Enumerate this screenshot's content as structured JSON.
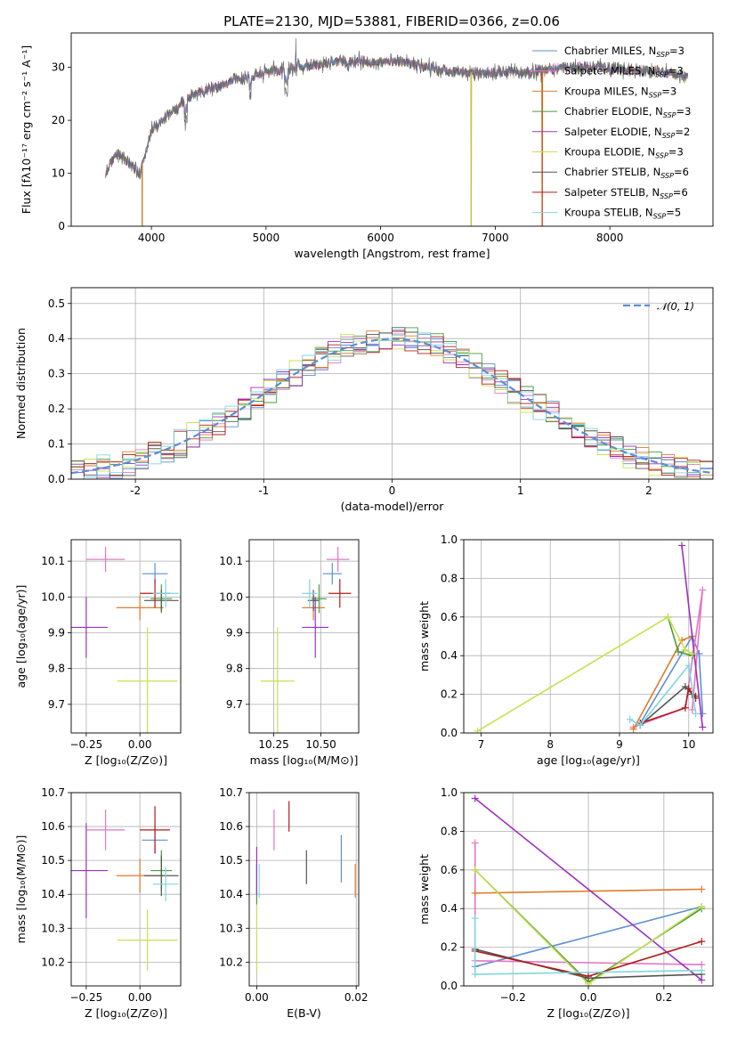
{
  "figure": {
    "title": "PLATE=2130, MJD=53881, FIBERID=0366, z=0.06"
  },
  "models": [
    {
      "name": "Chabrier MILES",
      "nssp": "3",
      "color": "#5d8fd1"
    },
    {
      "name": "Salpeter MILES",
      "nssp": "3",
      "color": "#e377c2"
    },
    {
      "name": "Kroupa MILES",
      "nssp": "3",
      "color": "#e07b2c"
    },
    {
      "name": "Chabrier ELODIE",
      "nssp": "3",
      "color": "#4a9a3c"
    },
    {
      "name": "Salpeter ELODIE",
      "nssp": "2",
      "color": "#9b30c0"
    },
    {
      "name": "Kroupa ELODIE",
      "nssp": "3",
      "color": "#c8e050"
    },
    {
      "name": "Chabrier STELIB",
      "nssp": "6",
      "color": "#555555"
    },
    {
      "name": "Salpeter STELIB",
      "nssp": "6",
      "color": "#b01c1c"
    },
    {
      "name": "Kroupa STELIB",
      "nssp": "5",
      "color": "#7fd6e0"
    }
  ],
  "chart_data": [
    {
      "id": "spectrum",
      "type": "line",
      "xlabel_pre": "wavelength [Angstrom, rest frame]",
      "ylabel": "Flux [fλ10⁻¹⁷ erg cm⁻² s⁻¹ A⁻¹]",
      "xlim": [
        3300,
        8900
      ],
      "ylim": [
        0,
        36.5
      ],
      "xticks": [
        4000,
        5000,
        6000,
        7000,
        8000
      ],
      "yticks": [
        0,
        10,
        20,
        30
      ],
      "grid": false,
      "legend": "top-right",
      "legend_suffix": ", N",
      "legend_sub": "SSP",
      "x_range": [
        3600,
        8680
      ],
      "continuum": [
        [
          3600,
          10
        ],
        [
          3700,
          14
        ],
        [
          3800,
          12
        ],
        [
          3900,
          10
        ],
        [
          4000,
          18
        ],
        [
          4100,
          20
        ],
        [
          4200,
          22
        ],
        [
          4300,
          24
        ],
        [
          4500,
          26
        ],
        [
          4800,
          28
        ],
        [
          5000,
          29
        ],
        [
          5300,
          30
        ],
        [
          5600,
          31
        ],
        [
          5900,
          31
        ],
        [
          6200,
          31
        ],
        [
          6500,
          29.5
        ],
        [
          6800,
          29
        ],
        [
          7000,
          29
        ],
        [
          7300,
          29
        ],
        [
          7600,
          30
        ],
        [
          7900,
          30
        ],
        [
          8200,
          29.5
        ],
        [
          8500,
          29
        ],
        [
          8680,
          28
        ]
      ],
      "spikes": [
        [
          3920,
          0
        ],
        [
          6790,
          0
        ],
        [
          7410,
          0
        ]
      ]
    },
    {
      "id": "residuals",
      "type": "histogram",
      "xlabel": "(data-model)/error",
      "ylabel": "Normed distribution",
      "xlim": [
        -2.5,
        2.5
      ],
      "ylim": [
        0,
        0.545
      ],
      "xticks": [
        -2,
        -1,
        0,
        1,
        2
      ],
      "yticks": [
        0.0,
        0.1,
        0.2,
        0.3,
        0.4,
        0.5
      ],
      "grid": true,
      "legend": "top-right",
      "gaussian_label": "𝒩(0, 1)",
      "gaussian_color": "#5b8fd6",
      "bin_width": 0.1
    },
    {
      "id": "age_vs_Z",
      "type": "errorbar",
      "xlabel": "Z [log₁₀(Z/Z⊙)]",
      "ylabel": "age  [log₁₀(age/yr)]",
      "xlim": [
        -0.32,
        0.19
      ],
      "ylim": [
        9.62,
        10.16
      ],
      "xticks": [
        -0.25,
        0.0
      ],
      "xticklabels": [
        "−0.25",
        "0.00"
      ],
      "yticks": [
        9.7,
        9.8,
        9.9,
        10.0,
        10.1
      ],
      "grid": true,
      "points": [
        {
          "m": 0,
          "x": 0.07,
          "y": 10.065,
          "xerr": 0.06,
          "yerr": 0.03
        },
        {
          "m": 1,
          "x": -0.16,
          "y": 10.105,
          "xerr": 0.09,
          "yerr": 0.035
        },
        {
          "m": 2,
          "x": 0.0,
          "y": 9.97,
          "xerr": 0.11,
          "yerr": 0.035
        },
        {
          "m": 3,
          "x": 0.1,
          "y": 9.995,
          "xerr": 0.05,
          "yerr": 0.04
        },
        {
          "m": 4,
          "x": -0.25,
          "y": 9.915,
          "xerr": 0.1,
          "yerr": 0.085
        },
        {
          "m": 5,
          "x": 0.035,
          "y": 9.765,
          "xerr": 0.14,
          "yerr": 0.15
        },
        {
          "m": 6,
          "x": 0.1,
          "y": 9.99,
          "xerr": 0.08,
          "yerr": 0.03
        },
        {
          "m": 7,
          "x": 0.07,
          "y": 10.01,
          "xerr": 0.07,
          "yerr": 0.04
        },
        {
          "m": 8,
          "x": 0.12,
          "y": 10.01,
          "xerr": 0.06,
          "yerr": 0.04
        }
      ]
    },
    {
      "id": "age_vs_mass",
      "type": "errorbar",
      "xlabel": "mass [log₁₀(M/M⊙)]",
      "ylabel": "",
      "xlim": [
        10.12,
        10.7
      ],
      "ylim": [
        9.62,
        10.16
      ],
      "xticks": [
        10.25,
        10.5
      ],
      "xticklabels": [
        "10.25",
        "10.50"
      ],
      "yticks": [
        9.7,
        9.8,
        9.9,
        10.0,
        10.1
      ],
      "grid": true,
      "points": [
        {
          "m": 0,
          "x": 10.56,
          "y": 10.065,
          "xerr": 0.05,
          "yerr": 0.03
        },
        {
          "m": 1,
          "x": 10.59,
          "y": 10.105,
          "xerr": 0.06,
          "yerr": 0.035
        },
        {
          "m": 2,
          "x": 10.46,
          "y": 9.97,
          "xerr": 0.06,
          "yerr": 0.035
        },
        {
          "m": 3,
          "x": 10.49,
          "y": 9.995,
          "xerr": 0.04,
          "yerr": 0.04
        },
        {
          "m": 4,
          "x": 10.47,
          "y": 9.915,
          "xerr": 0.07,
          "yerr": 0.085
        },
        {
          "m": 5,
          "x": 10.27,
          "y": 9.765,
          "xerr": 0.09,
          "yerr": 0.15
        },
        {
          "m": 6,
          "x": 10.46,
          "y": 9.99,
          "xerr": 0.03,
          "yerr": 0.03
        },
        {
          "m": 7,
          "x": 10.6,
          "y": 10.01,
          "xerr": 0.06,
          "yerr": 0.04
        },
        {
          "m": 8,
          "x": 10.44,
          "y": 10.01,
          "xerr": 0.04,
          "yerr": 0.04
        }
      ]
    },
    {
      "id": "weight_vs_age",
      "type": "line",
      "xlabel": "age  [log₁₀(age/yr)]",
      "ylabel": "mass weight",
      "xlim": [
        6.75,
        10.35
      ],
      "ylim": [
        0,
        1.0
      ],
      "xticks": [
        7,
        8,
        9,
        10
      ],
      "yticks": [
        0.0,
        0.2,
        0.4,
        0.6,
        0.8,
        1.0
      ],
      "grid": true,
      "series": [
        {
          "m": 0,
          "x": [
            9.3,
            10.05,
            10.15,
            10.2
          ],
          "y": [
            0.05,
            0.5,
            0.41,
            0.1
          ]
        },
        {
          "m": 1,
          "x": [
            9.2,
            9.95,
            10.2,
            10.05
          ],
          "y": [
            0.03,
            0.13,
            0.74,
            0.12
          ]
        },
        {
          "m": 2,
          "x": [
            9.2,
            9.9,
            10.05
          ],
          "y": [
            0.02,
            0.48,
            0.5
          ]
        },
        {
          "m": 3,
          "x": [
            9.7,
            9.85,
            10.05
          ],
          "y": [
            0.6,
            0.42,
            0.4
          ]
        },
        {
          "m": 4,
          "x": [
            9.9,
            10.2
          ],
          "y": [
            0.97,
            0.03
          ]
        },
        {
          "m": 5,
          "x": [
            6.95,
            9.7,
            9.95,
            10.05
          ],
          "y": [
            0.01,
            0.6,
            0.43,
            0.41
          ]
        },
        {
          "m": 6,
          "x": [
            9.3,
            9.95,
            10.05,
            10.1
          ],
          "y": [
            0.04,
            0.24,
            0.2,
            0.19
          ]
        },
        {
          "m": 7,
          "x": [
            9.3,
            9.95,
            10.0,
            10.1
          ],
          "y": [
            0.05,
            0.13,
            0.23,
            0.18
          ]
        },
        {
          "m": 8,
          "x": [
            9.15,
            9.3,
            10.0,
            10.1
          ],
          "y": [
            0.07,
            0.04,
            0.35,
            0.1
          ]
        }
      ]
    },
    {
      "id": "mass_vs_Z",
      "type": "errorbar",
      "xlabel": "Z [log₁₀(Z/Z⊙)]",
      "ylabel": "mass [log₁₀(M/M⊙)]",
      "xlim": [
        -0.32,
        0.19
      ],
      "ylim": [
        10.13,
        10.7
      ],
      "xticks": [
        -0.25,
        0.0
      ],
      "xticklabels": [
        "−0.25",
        "0.00"
      ],
      "yticks": [
        10.2,
        10.3,
        10.4,
        10.5,
        10.6,
        10.7
      ],
      "grid": true,
      "points": [
        {
          "m": 0,
          "x": 0.07,
          "y": 10.56,
          "xerr": 0.06,
          "yerr": 0.04
        },
        {
          "m": 1,
          "x": -0.16,
          "y": 10.59,
          "xerr": 0.09,
          "yerr": 0.06
        },
        {
          "m": 2,
          "x": 0.0,
          "y": 10.455,
          "xerr": 0.11,
          "yerr": 0.05
        },
        {
          "m": 3,
          "x": 0.1,
          "y": 10.47,
          "xerr": 0.05,
          "yerr": 0.06
        },
        {
          "m": 4,
          "x": -0.25,
          "y": 10.47,
          "xerr": 0.1,
          "yerr": 0.14
        },
        {
          "m": 5,
          "x": 0.035,
          "y": 10.265,
          "xerr": 0.14,
          "yerr": 0.09
        },
        {
          "m": 6,
          "x": 0.1,
          "y": 10.455,
          "xerr": 0.08,
          "yerr": 0.06
        },
        {
          "m": 7,
          "x": 0.07,
          "y": 10.59,
          "xerr": 0.07,
          "yerr": 0.07
        },
        {
          "m": 8,
          "x": 0.12,
          "y": 10.43,
          "xerr": 0.06,
          "yerr": 0.05
        }
      ]
    },
    {
      "id": "mass_vs_EBV",
      "type": "errorbar",
      "xlabel": "E(B-V)",
      "ylabel": "",
      "xlim": [
        -0.0015,
        0.0205
      ],
      "ylim": [
        10.13,
        10.7
      ],
      "xticks": [
        0.0,
        0.02
      ],
      "xticklabels": [
        "0.00",
        "0.02"
      ],
      "yticks": [
        10.2,
        10.3,
        10.4,
        10.5,
        10.6,
        10.7
      ],
      "grid": true,
      "points": [
        {
          "m": 0,
          "x": 0.017,
          "y": 10.505,
          "xerr": 0,
          "yerr": 0.07
        },
        {
          "m": 1,
          "x": 0.0035,
          "y": 10.59,
          "xerr": 0,
          "yerr": 0.06
        },
        {
          "m": 2,
          "x": 0.0198,
          "y": 10.44,
          "xerr": 0,
          "yerr": 0.05
        },
        {
          "m": 3,
          "x": 0.0,
          "y": 10.43,
          "xerr": 0,
          "yerr": 0.06
        },
        {
          "m": 4,
          "x": 0.0,
          "y": 10.47,
          "xerr": 0,
          "yerr": 0.07
        },
        {
          "m": 5,
          "x": 0.0,
          "y": 10.27,
          "xerr": 0,
          "yerr": 0.1
        },
        {
          "m": 6,
          "x": 0.01,
          "y": 10.48,
          "xerr": 0,
          "yerr": 0.05
        },
        {
          "m": 7,
          "x": 0.0065,
          "y": 10.63,
          "xerr": 0,
          "yerr": 0.045
        },
        {
          "m": 8,
          "x": 0.0005,
          "y": 10.44,
          "xerr": 0,
          "yerr": 0.05
        }
      ]
    },
    {
      "id": "weight_vs_Z",
      "type": "line",
      "xlabel": "Z [log₁₀(Z/Z⊙)]",
      "ylabel": "mass weight",
      "xlim": [
        -0.33,
        0.33
      ],
      "ylim": [
        0,
        1.0
      ],
      "xticks": [
        -0.2,
        0.0,
        0.2
      ],
      "xticklabels": [
        "−0.2",
        "0.0",
        "0.2"
      ],
      "yticks": [
        0.0,
        0.2,
        0.4,
        0.6,
        0.8,
        1.0
      ],
      "grid": true,
      "series": [
        {
          "m": 0,
          "x": [
            -0.3,
            0.3
          ],
          "y": [
            0.1,
            0.41
          ]
        },
        {
          "m": 1,
          "x": [
            -0.3,
            -0.3,
            0.3
          ],
          "y": [
            0.74,
            0.13,
            0.11
          ]
        },
        {
          "m": 2,
          "x": [
            -0.3,
            0.3
          ],
          "y": [
            0.48,
            0.5
          ]
        },
        {
          "m": 3,
          "x": [
            -0.3,
            0.0,
            0.3
          ],
          "y": [
            0.6,
            0.02,
            0.4
          ]
        },
        {
          "m": 4,
          "x": [
            -0.3,
            0.3
          ],
          "y": [
            0.97,
            0.03
          ]
        },
        {
          "m": 5,
          "x": [
            -0.3,
            0.0,
            0.3
          ],
          "y": [
            0.6,
            0.01,
            0.41
          ]
        },
        {
          "m": 6,
          "x": [
            -0.3,
            0.0,
            0.3
          ],
          "y": [
            0.19,
            0.04,
            0.06
          ]
        },
        {
          "m": 7,
          "x": [
            -0.3,
            0.0,
            0.3
          ],
          "y": [
            0.18,
            0.05,
            0.23
          ]
        },
        {
          "m": 8,
          "x": [
            -0.3,
            -0.3,
            0.3
          ],
          "y": [
            0.35,
            0.06,
            0.08
          ]
        }
      ]
    }
  ]
}
